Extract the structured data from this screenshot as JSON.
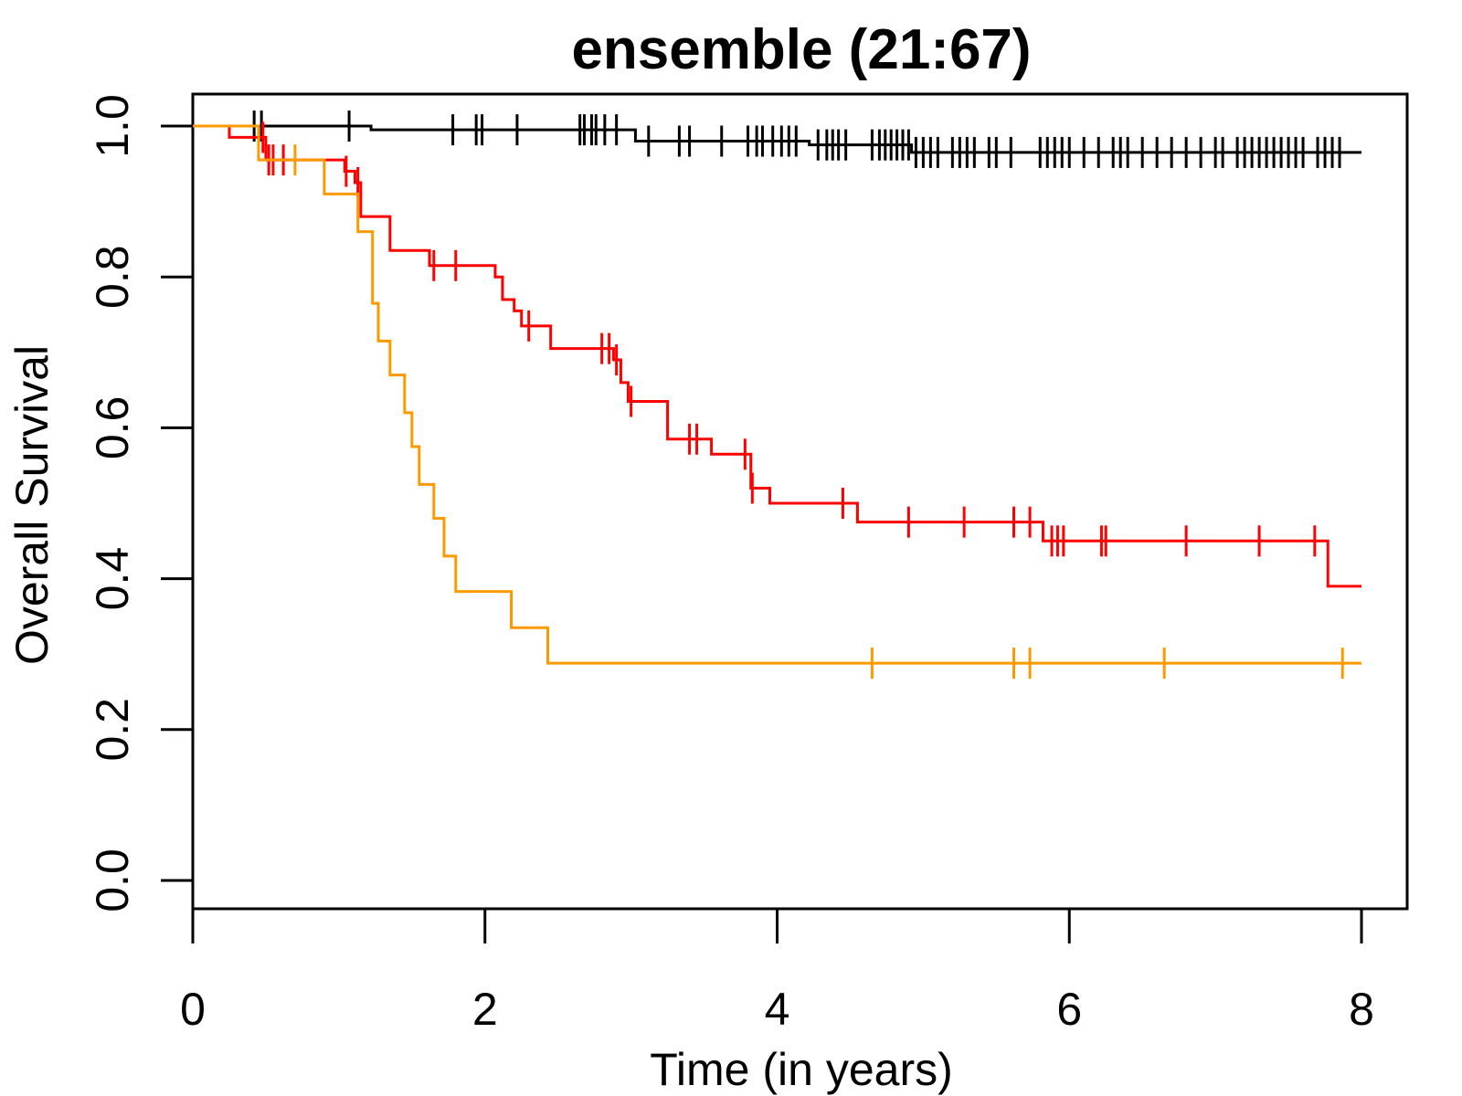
{
  "chart_data": {
    "type": "line",
    "subtype": "kaplan-meier step",
    "title": "ensemble (21:67)",
    "xlabel": "Time (in years)",
    "ylabel": "Overall Survival",
    "xlim": [
      0,
      8
    ],
    "ylim": [
      0,
      1
    ],
    "x_ticks": [
      0,
      2,
      4,
      6,
      8
    ],
    "y_ticks": [
      0.0,
      0.2,
      0.4,
      0.6,
      0.8,
      1.0
    ],
    "x_tick_labels": [
      "0",
      "2",
      "4",
      "6",
      "8"
    ],
    "y_tick_labels": [
      "0.0",
      "0.2",
      "0.4",
      "0.6",
      "0.8",
      "1.0"
    ],
    "grid": false,
    "legend": "none",
    "series": [
      {
        "color": "#000000",
        "x": [
          0,
          1.22,
          3.03,
          4.22,
          4.92,
          8.0
        ],
        "y": [
          1.0,
          0.995,
          0.98,
          0.975,
          0.965,
          0.965
        ],
        "censor_x": [
          0.42,
          0.47,
          1.07,
          1.78,
          1.94,
          1.98,
          2.22,
          2.65,
          2.68,
          2.73,
          2.76,
          2.82,
          2.9,
          3.12,
          3.33,
          3.4,
          3.62,
          3.8,
          3.86,
          3.9,
          3.97,
          4.03,
          4.08,
          4.13,
          4.28,
          4.34,
          4.38,
          4.42,
          4.47,
          4.65,
          4.7,
          4.74,
          4.78,
          4.82,
          4.86,
          4.9,
          4.95,
          5.0,
          5.05,
          5.1,
          5.2,
          5.25,
          5.3,
          5.35,
          5.45,
          5.5,
          5.6,
          5.8,
          5.85,
          5.9,
          5.95,
          6.0,
          6.1,
          6.2,
          6.3,
          6.35,
          6.4,
          6.5,
          6.6,
          6.7,
          6.8,
          6.9,
          7.0,
          7.05,
          7.15,
          7.2,
          7.25,
          7.3,
          7.35,
          7.4,
          7.45,
          7.5,
          7.55,
          7.6,
          7.7,
          7.75,
          7.8,
          7.85
        ]
      },
      {
        "color": "#ff0000",
        "x": [
          0,
          0.25,
          0.5,
          1.04,
          1.11,
          1.15,
          1.35,
          1.62,
          2.07,
          2.12,
          2.2,
          2.25,
          2.45,
          2.88,
          2.93,
          2.98,
          3.25,
          3.55,
          3.82,
          3.95,
          4.55,
          5.82,
          7.77,
          8.0
        ],
        "y": [
          1.0,
          0.985,
          0.955,
          0.94,
          0.925,
          0.88,
          0.835,
          0.815,
          0.8,
          0.77,
          0.755,
          0.735,
          0.705,
          0.69,
          0.66,
          0.635,
          0.585,
          0.565,
          0.52,
          0.5,
          0.475,
          0.45,
          0.39,
          0.39
        ],
        "censor_x": [
          0.48,
          0.52,
          0.55,
          0.62,
          1.05,
          1.13,
          1.65,
          1.8,
          2.3,
          2.8,
          2.85,
          2.9,
          3.0,
          3.4,
          3.45,
          3.78,
          3.83,
          4.45,
          4.9,
          5.28,
          5.62,
          5.73,
          5.88,
          5.92,
          5.96,
          6.22,
          6.25,
          6.8,
          7.3,
          7.68
        ]
      },
      {
        "color": "#ff9900",
        "x": [
          0,
          0.45,
          0.9,
          1.13,
          1.23,
          1.27,
          1.35,
          1.45,
          1.5,
          1.55,
          1.65,
          1.72,
          1.8,
          2.18,
          2.43,
          8.0
        ],
        "y": [
          1.0,
          0.955,
          0.91,
          0.86,
          0.765,
          0.715,
          0.67,
          0.62,
          0.575,
          0.525,
          0.48,
          0.43,
          0.383,
          0.335,
          0.288,
          0.288
        ],
        "censor_x": [
          0.7,
          4.65,
          5.62,
          5.73,
          6.65,
          7.87
        ]
      }
    ]
  }
}
